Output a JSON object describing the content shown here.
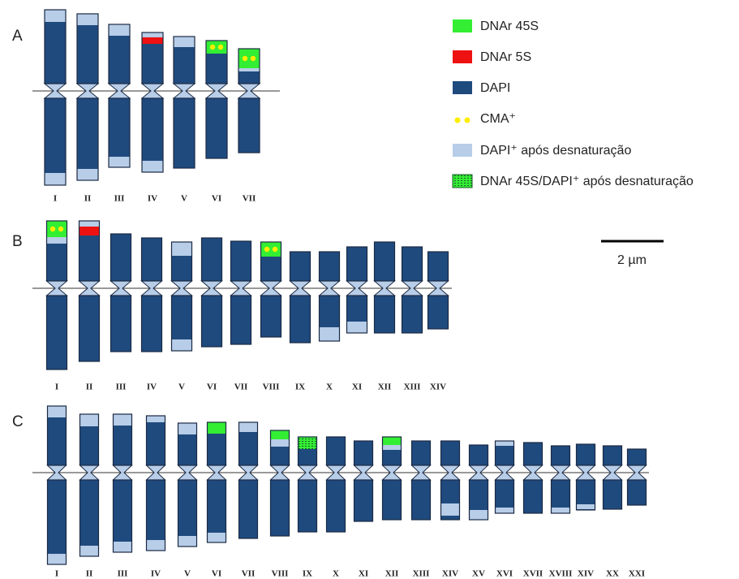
{
  "panels": [
    {
      "label": "A",
      "chromosomes": [
        "I",
        "II",
        "III",
        "IV",
        "V",
        "VI",
        "VII"
      ]
    },
    {
      "label": "B",
      "chromosomes": [
        "I",
        "II",
        "III",
        "IV",
        "V",
        "VI",
        "VII",
        "VIII",
        "IX",
        "X",
        "XI",
        "XII",
        "XIII",
        "XIV"
      ]
    },
    {
      "label": "C",
      "chromosomes": [
        "I",
        "II",
        "III",
        "IV",
        "V",
        "VI",
        "VII",
        "VIII",
        "IX",
        "X",
        "XI",
        "XII",
        "XIII",
        "XIV",
        "XV",
        "XVI",
        "XVII",
        "XVIII",
        "XIV",
        "XX",
        "XXI"
      ]
    }
  ],
  "legend": [
    "DNAr 45S",
    "DNAr 5S",
    "DAPI",
    "CMA⁺",
    "DAPI⁺ após desnaturação",
    "DNAr 45S/DAPI⁺ após desnaturação"
  ],
  "scale_bar": "2 µm"
}
